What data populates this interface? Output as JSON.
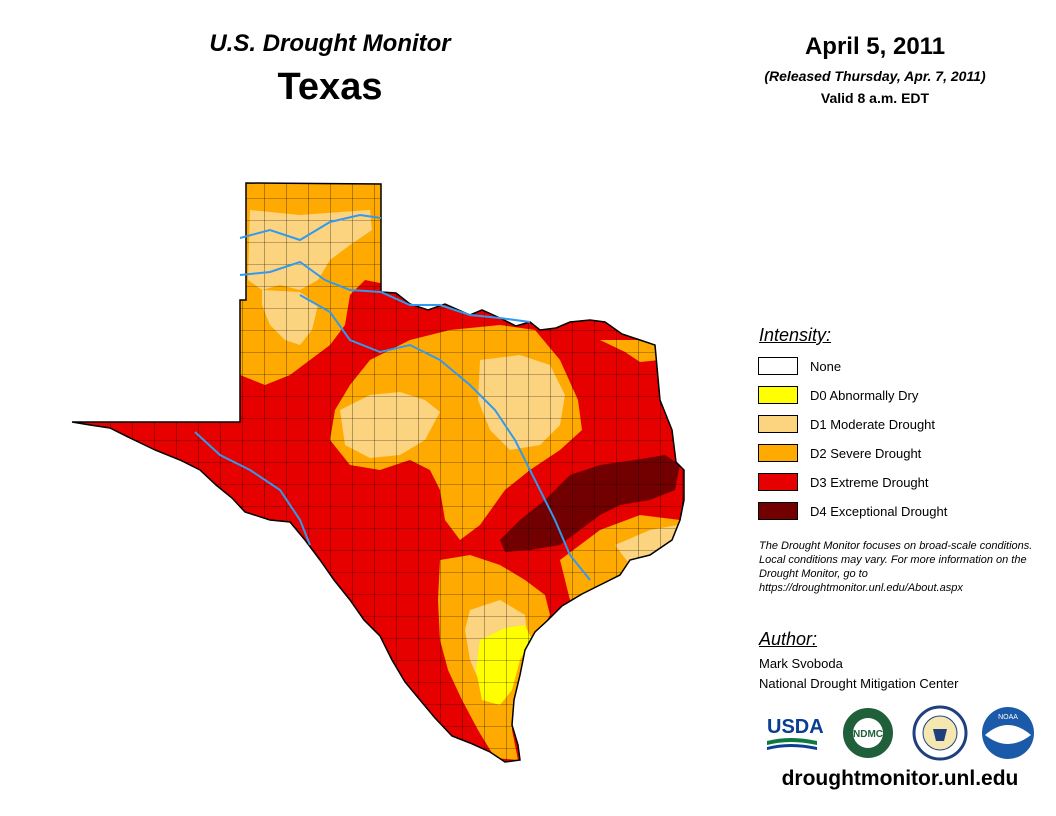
{
  "header": {
    "title": "U.S. Drought Monitor",
    "region": "Texas",
    "date": "April 5, 2011",
    "released": "(Released Thursday, Apr. 7, 2011)",
    "valid": "Valid 8 a.m. EDT"
  },
  "legend": {
    "title": "Intensity:",
    "items": [
      {
        "label": "None",
        "color": "#ffffff"
      },
      {
        "label": "D0 Abnormally Dry",
        "color": "#ffff00"
      },
      {
        "label": "D1 Moderate Drought",
        "color": "#fcd37f"
      },
      {
        "label": "D2 Severe Drought",
        "color": "#ffaa00"
      },
      {
        "label": "D3 Extreme Drought",
        "color": "#e60000"
      },
      {
        "label": "D4 Exceptional Drought",
        "color": "#730000"
      }
    ]
  },
  "note": "The Drought Monitor focuses on broad-scale conditions. Local conditions may vary. For more information on the Drought Monitor, go to https://droughtmonitor.unl.edu/About.aspx",
  "author": {
    "title": "Author:",
    "name": "Mark Svoboda",
    "organization": "National Drought Mitigation Center"
  },
  "logos": {
    "usda": "USDA",
    "ndmc": "NDMC",
    "noaa": "NOAA"
  },
  "footer": {
    "url": "droughtmonitor.unl.edu"
  },
  "colors": {
    "river": "#3399ee",
    "county_line": "#000000"
  }
}
